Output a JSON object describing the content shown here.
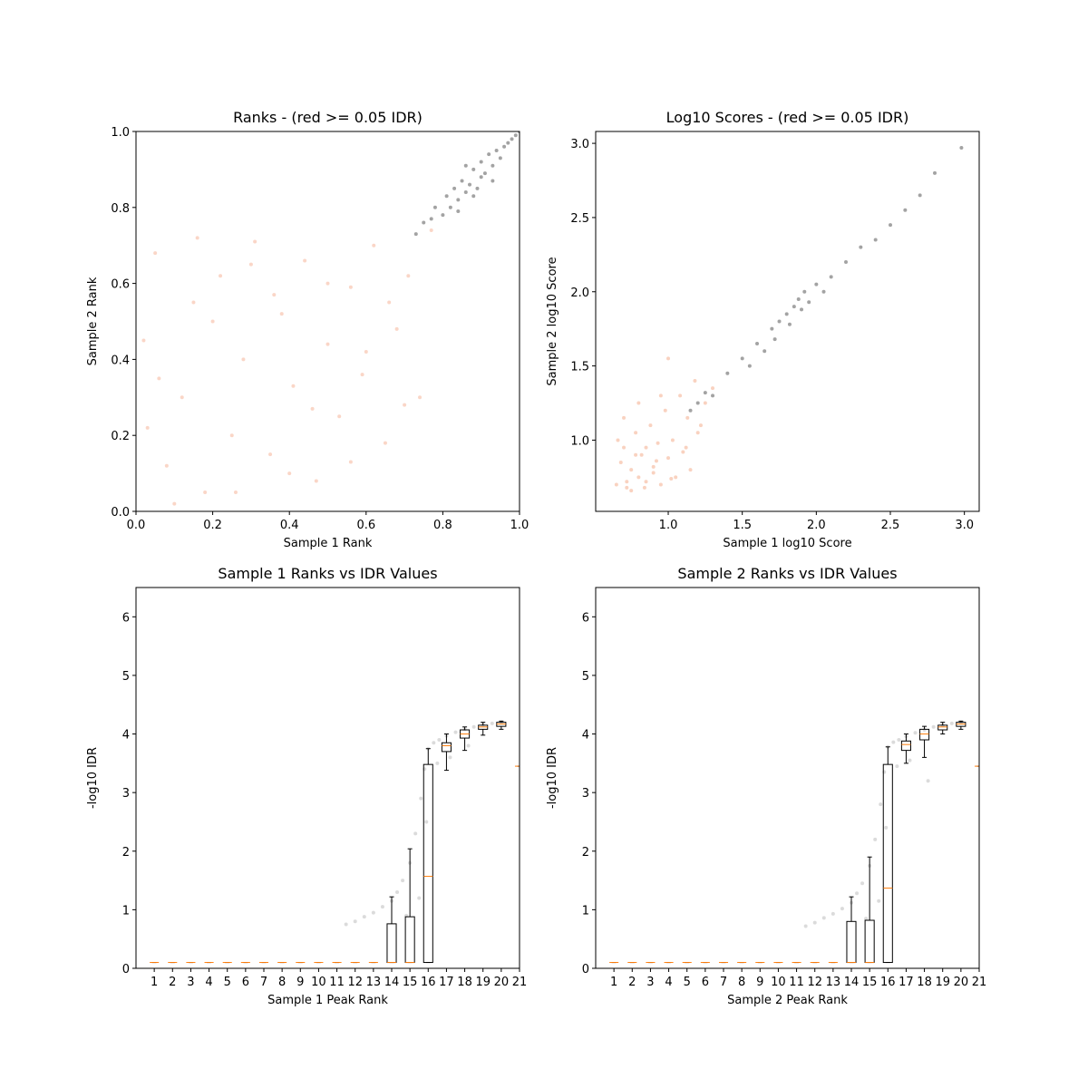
{
  "chart_data": [
    {
      "type": "scatter",
      "title": "Ranks - (red >= 0.05 IDR)",
      "xlabel": "Sample 1 Rank",
      "ylabel": "Sample 2 Rank",
      "xlim": [
        0,
        1
      ],
      "ylim": [
        0,
        1
      ],
      "xticks": [
        {
          "value": 0,
          "label": "0.0"
        },
        0.2,
        0.4,
        0.6,
        0.8,
        {
          "value": 1,
          "label": "1.0"
        }
      ],
      "yticks": [
        {
          "value": 0,
          "label": "0.0"
        },
        0.2,
        0.4,
        0.6,
        0.8,
        {
          "value": 1,
          "label": "1.0"
        }
      ],
      "series": [
        {
          "color": "#f4a582",
          "alpha": 0.45,
          "x": [
            0.02,
            0.05,
            0.08,
            0.12,
            0.15,
            0.18,
            0.22,
            0.25,
            0.28,
            0.31,
            0.35,
            0.38,
            0.41,
            0.44,
            0.47,
            0.5,
            0.53,
            0.56,
            0.59,
            0.62,
            0.65,
            0.68,
            0.71,
            0.74,
            0.77,
            0.03,
            0.1,
            0.2,
            0.3,
            0.4,
            0.5,
            0.6,
            0.7,
            0.06,
            0.16,
            0.26,
            0.36,
            0.46,
            0.56,
            0.66
          ],
          "y": [
            0.45,
            0.68,
            0.12,
            0.3,
            0.55,
            0.05,
            0.62,
            0.2,
            0.4,
            0.71,
            0.15,
            0.52,
            0.33,
            0.66,
            0.08,
            0.44,
            0.25,
            0.59,
            0.36,
            0.7,
            0.18,
            0.48,
            0.62,
            0.3,
            0.74,
            0.22,
            0.02,
            0.5,
            0.65,
            0.1,
            0.6,
            0.42,
            0.28,
            0.35,
            0.72,
            0.05,
            0.57,
            0.27,
            0.13,
            0.55
          ]
        },
        {
          "color": "#333333",
          "alpha": 0.45,
          "x": [
            0.73,
            0.75,
            0.77,
            0.78,
            0.8,
            0.81,
            0.82,
            0.83,
            0.84,
            0.85,
            0.86,
            0.87,
            0.88,
            0.89,
            0.9,
            0.91,
            0.92,
            0.93,
            0.94,
            0.95,
            0.96,
            0.97,
            0.98,
            0.99,
            1.0,
            0.84,
            0.88,
            0.9,
            0.93,
            0.86
          ],
          "y": [
            0.73,
            0.76,
            0.77,
            0.8,
            0.78,
            0.83,
            0.8,
            0.85,
            0.82,
            0.87,
            0.84,
            0.86,
            0.9,
            0.85,
            0.92,
            0.89,
            0.94,
            0.91,
            0.95,
            0.93,
            0.96,
            0.97,
            0.98,
            0.99,
            1.0,
            0.79,
            0.83,
            0.88,
            0.87,
            0.91
          ]
        }
      ]
    },
    {
      "type": "scatter",
      "title": "Log10 Scores - (red >= 0.05 IDR)",
      "xlabel": "Sample 1 log10 Score",
      "ylabel": "Sample 2 log10 Score",
      "xlim": [
        0.51,
        3.1
      ],
      "ylim": [
        0.52,
        3.08
      ],
      "xticks": [
        {
          "value": 1,
          "label": "1.0"
        },
        1.5,
        {
          "value": 2,
          "label": "2.0"
        },
        2.5,
        {
          "value": 3,
          "label": "3.0"
        }
      ],
      "yticks": [
        {
          "value": 1,
          "label": "1.0"
        },
        1.5,
        {
          "value": 2,
          "label": "2.0"
        },
        2.5,
        {
          "value": 3,
          "label": "3.0"
        }
      ],
      "series": [
        {
          "color": "#f4a582",
          "alpha": 0.5,
          "x": [
            0.65,
            0.68,
            0.7,
            0.72,
            0.75,
            0.78,
            0.8,
            0.82,
            0.85,
            0.88,
            0.9,
            0.93,
            0.95,
            0.98,
            1.0,
            1.03,
            1.05,
            1.08,
            1.1,
            1.13,
            1.15,
            1.18,
            1.2,
            1.25,
            1.3,
            0.7,
            0.75,
            0.8,
            0.85,
            0.9,
            0.95,
            1.0,
            0.66,
            0.72,
            0.78,
            0.84,
            0.92,
            1.02,
            1.12,
            1.22
          ],
          "y": [
            0.7,
            0.85,
            0.95,
            0.68,
            0.8,
            1.05,
            0.75,
            0.9,
            0.72,
            1.1,
            0.82,
            0.98,
            0.7,
            1.2,
            0.88,
            1.0,
            0.75,
            1.3,
            0.92,
            1.15,
            0.8,
            1.4,
            1.05,
            1.25,
            1.35,
            1.15,
            0.66,
            1.25,
            0.95,
            0.78,
            1.3,
            1.55,
            1.0,
            0.72,
            0.9,
            0.68,
            0.86,
            0.74,
            0.95,
            1.1
          ]
        },
        {
          "color": "#333333",
          "alpha": 0.45,
          "x": [
            1.15,
            1.2,
            1.25,
            1.3,
            1.4,
            1.5,
            1.55,
            1.6,
            1.65,
            1.7,
            1.72,
            1.75,
            1.8,
            1.82,
            1.85,
            1.88,
            1.9,
            1.92,
            1.95,
            2.0,
            2.05,
            2.1,
            2.2,
            2.3,
            2.4,
            2.5,
            2.6,
            2.7,
            2.8,
            2.98
          ],
          "y": [
            1.2,
            1.25,
            1.32,
            1.3,
            1.45,
            1.55,
            1.5,
            1.65,
            1.6,
            1.75,
            1.68,
            1.8,
            1.85,
            1.78,
            1.9,
            1.95,
            1.88,
            2.0,
            1.93,
            2.05,
            2.0,
            2.1,
            2.2,
            2.3,
            2.35,
            2.45,
            2.55,
            2.65,
            2.8,
            2.97
          ]
        }
      ]
    },
    {
      "type": "box",
      "title": "Sample 1 Ranks vs IDR Values",
      "xlabel": "Sample 1 Peak Rank",
      "ylabel": "-log10 IDR",
      "xlim": [
        0,
        21
      ],
      "ylim": [
        0,
        6.5
      ],
      "xticks": [
        1,
        2,
        3,
        4,
        5,
        6,
        7,
        8,
        9,
        10,
        11,
        12,
        13,
        14,
        15,
        16,
        17,
        18,
        19,
        20,
        21
      ],
      "yticks": [
        0,
        1,
        2,
        3,
        4,
        5,
        6
      ],
      "points": {
        "color": "#888888",
        "alpha": 0.3,
        "x": [
          11.5,
          12,
          12.5,
          13,
          13.5,
          14,
          14.3,
          14.6,
          15,
          15.3,
          15.6,
          15.8,
          16,
          16.3,
          16.6,
          17,
          17.5,
          18,
          18.5,
          19,
          19.5,
          20,
          15.5,
          16.5,
          17.2,
          18.2,
          14.8,
          15.9
        ],
        "y": [
          0.75,
          0.8,
          0.88,
          0.95,
          1.05,
          1.15,
          1.3,
          1.5,
          1.8,
          2.3,
          2.9,
          3.4,
          3.75,
          3.85,
          3.9,
          3.97,
          4.03,
          4.08,
          4.12,
          4.16,
          4.18,
          4.2,
          1.2,
          3.5,
          3.6,
          3.8,
          0.9,
          2.5
        ]
      },
      "median_color": "#ff7f0e",
      "boxes": [
        {
          "position": 1,
          "whislo": 0.1,
          "q1": 0.1,
          "med": 0.1,
          "q3": 0.1,
          "whishi": 0.1
        },
        {
          "position": 2,
          "whislo": 0.1,
          "q1": 0.1,
          "med": 0.1,
          "q3": 0.1,
          "whishi": 0.1
        },
        {
          "position": 3,
          "whislo": 0.1,
          "q1": 0.1,
          "med": 0.1,
          "q3": 0.1,
          "whishi": 0.1
        },
        {
          "position": 4,
          "whislo": 0.1,
          "q1": 0.1,
          "med": 0.1,
          "q3": 0.1,
          "whishi": 0.1
        },
        {
          "position": 5,
          "whislo": 0.1,
          "q1": 0.1,
          "med": 0.1,
          "q3": 0.1,
          "whishi": 0.1
        },
        {
          "position": 6,
          "whislo": 0.1,
          "q1": 0.1,
          "med": 0.1,
          "q3": 0.1,
          "whishi": 0.1
        },
        {
          "position": 7,
          "whislo": 0.1,
          "q1": 0.1,
          "med": 0.1,
          "q3": 0.1,
          "whishi": 0.1
        },
        {
          "position": 8,
          "whislo": 0.1,
          "q1": 0.1,
          "med": 0.1,
          "q3": 0.1,
          "whishi": 0.1
        },
        {
          "position": 9,
          "whislo": 0.1,
          "q1": 0.1,
          "med": 0.1,
          "q3": 0.1,
          "whishi": 0.1
        },
        {
          "position": 10,
          "whislo": 0.1,
          "q1": 0.1,
          "med": 0.1,
          "q3": 0.1,
          "whishi": 0.1
        },
        {
          "position": 11,
          "whislo": 0.1,
          "q1": 0.1,
          "med": 0.1,
          "q3": 0.1,
          "whishi": 0.1
        },
        {
          "position": 12,
          "whislo": 0.1,
          "q1": 0.1,
          "med": 0.1,
          "q3": 0.1,
          "whishi": 0.1
        },
        {
          "position": 13,
          "whislo": 0.1,
          "q1": 0.1,
          "med": 0.1,
          "q3": 0.1,
          "whishi": 0.1
        },
        {
          "position": 14,
          "whislo": 0.1,
          "q1": 0.1,
          "med": 0.1,
          "q3": 0.76,
          "whishi": 1.22
        },
        {
          "position": 15,
          "whislo": 0.1,
          "q1": 0.1,
          "med": 0.1,
          "q3": 0.88,
          "whishi": 2.04
        },
        {
          "position": 16,
          "whislo": 0.1,
          "q1": 0.1,
          "med": 1.57,
          "q3": 3.48,
          "whishi": 3.75
        },
        {
          "position": 17,
          "whislo": 3.38,
          "q1": 3.7,
          "med": 3.8,
          "q3": 3.85,
          "whishi": 4.0
        },
        {
          "position": 18,
          "whislo": 3.72,
          "q1": 3.93,
          "med": 4.0,
          "q3": 4.07,
          "whishi": 4.12
        },
        {
          "position": 19,
          "whislo": 3.98,
          "q1": 4.08,
          "med": 4.12,
          "q3": 4.15,
          "whishi": 4.2
        },
        {
          "position": 20,
          "whislo": 4.08,
          "q1": 4.13,
          "med": 4.17,
          "q3": 4.2,
          "whishi": 4.22
        },
        {
          "position": 21,
          "whislo": 3.45,
          "q1": 3.45,
          "med": 3.45,
          "q3": 3.45,
          "whishi": 3.45
        }
      ]
    },
    {
      "type": "box",
      "title": "Sample 2 Ranks vs IDR Values",
      "xlabel": "Sample 2 Peak Rank",
      "ylabel": "-log10 IDR",
      "xlim": [
        0,
        21
      ],
      "ylim": [
        0,
        6.5
      ],
      "xticks": [
        1,
        2,
        3,
        4,
        5,
        6,
        7,
        8,
        9,
        10,
        11,
        12,
        13,
        14,
        15,
        16,
        17,
        18,
        19,
        20,
        21
      ],
      "yticks": [
        0,
        1,
        2,
        3,
        4,
        5,
        6
      ],
      "points": {
        "color": "#888888",
        "alpha": 0.3,
        "x": [
          11.5,
          12,
          12.5,
          13,
          13.5,
          14,
          14.3,
          14.6,
          15,
          15.3,
          15.6,
          15.8,
          16,
          16.3,
          16.6,
          17,
          17.5,
          18,
          18.5,
          19,
          19.5,
          20,
          15.5,
          16.5,
          17.2,
          18.2,
          14.8,
          15.9
        ],
        "y": [
          0.72,
          0.78,
          0.86,
          0.93,
          1.02,
          1.12,
          1.28,
          1.45,
          1.75,
          2.2,
          2.8,
          3.35,
          3.78,
          3.86,
          3.9,
          3.96,
          4.02,
          4.07,
          4.12,
          4.15,
          4.18,
          4.2,
          1.15,
          3.45,
          3.55,
          3.2,
          0.85,
          2.4
        ]
      },
      "median_color": "#ff7f0e",
      "boxes": [
        {
          "position": 1,
          "whislo": 0.1,
          "q1": 0.1,
          "med": 0.1,
          "q3": 0.1,
          "whishi": 0.1
        },
        {
          "position": 2,
          "whislo": 0.1,
          "q1": 0.1,
          "med": 0.1,
          "q3": 0.1,
          "whishi": 0.1
        },
        {
          "position": 3,
          "whislo": 0.1,
          "q1": 0.1,
          "med": 0.1,
          "q3": 0.1,
          "whishi": 0.1
        },
        {
          "position": 4,
          "whislo": 0.1,
          "q1": 0.1,
          "med": 0.1,
          "q3": 0.1,
          "whishi": 0.1
        },
        {
          "position": 5,
          "whislo": 0.1,
          "q1": 0.1,
          "med": 0.1,
          "q3": 0.1,
          "whishi": 0.1
        },
        {
          "position": 6,
          "whislo": 0.1,
          "q1": 0.1,
          "med": 0.1,
          "q3": 0.1,
          "whishi": 0.1
        },
        {
          "position": 7,
          "whislo": 0.1,
          "q1": 0.1,
          "med": 0.1,
          "q3": 0.1,
          "whishi": 0.1
        },
        {
          "position": 8,
          "whislo": 0.1,
          "q1": 0.1,
          "med": 0.1,
          "q3": 0.1,
          "whishi": 0.1
        },
        {
          "position": 9,
          "whislo": 0.1,
          "q1": 0.1,
          "med": 0.1,
          "q3": 0.1,
          "whishi": 0.1
        },
        {
          "position": 10,
          "whislo": 0.1,
          "q1": 0.1,
          "med": 0.1,
          "q3": 0.1,
          "whishi": 0.1
        },
        {
          "position": 11,
          "whislo": 0.1,
          "q1": 0.1,
          "med": 0.1,
          "q3": 0.1,
          "whishi": 0.1
        },
        {
          "position": 12,
          "whislo": 0.1,
          "q1": 0.1,
          "med": 0.1,
          "q3": 0.1,
          "whishi": 0.1
        },
        {
          "position": 13,
          "whislo": 0.1,
          "q1": 0.1,
          "med": 0.1,
          "q3": 0.1,
          "whishi": 0.1
        },
        {
          "position": 14,
          "whislo": 0.1,
          "q1": 0.1,
          "med": 0.1,
          "q3": 0.8,
          "whishi": 1.22
        },
        {
          "position": 15,
          "whislo": 0.1,
          "q1": 0.1,
          "med": 0.1,
          "q3": 0.82,
          "whishi": 1.9
        },
        {
          "position": 16,
          "whislo": 0.1,
          "q1": 0.1,
          "med": 1.37,
          "q3": 3.48,
          "whishi": 3.78
        },
        {
          "position": 17,
          "whislo": 3.5,
          "q1": 3.72,
          "med": 3.82,
          "q3": 3.88,
          "whishi": 4.0
        },
        {
          "position": 18,
          "whislo": 3.6,
          "q1": 3.9,
          "med": 4.0,
          "q3": 4.08,
          "whishi": 4.13
        },
        {
          "position": 19,
          "whislo": 4.0,
          "q1": 4.07,
          "med": 4.12,
          "q3": 4.15,
          "whishi": 4.2
        },
        {
          "position": 20,
          "whislo": 4.08,
          "q1": 4.13,
          "med": 4.17,
          "q3": 4.2,
          "whishi": 4.22
        },
        {
          "position": 21,
          "whislo": 3.45,
          "q1": 3.45,
          "med": 3.45,
          "q3": 3.45,
          "whishi": 3.45
        }
      ]
    }
  ]
}
